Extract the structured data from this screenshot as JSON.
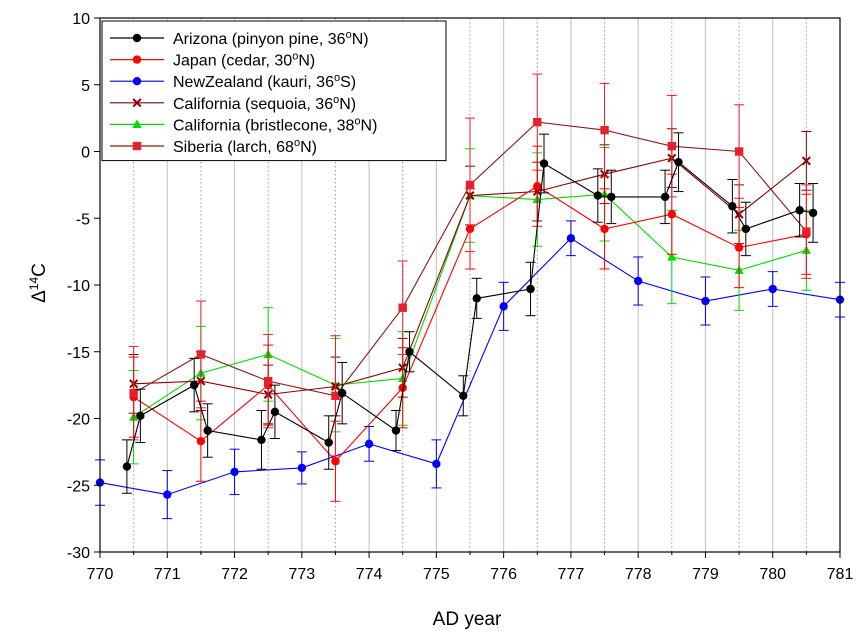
{
  "chart_data": {
    "type": "line",
    "xlabel": "AD year",
    "ylabel_main": "Δ",
    "ylabel_sup": "14",
    "ylabel_tail": "C",
    "xlim": [
      770,
      781
    ],
    "ylim": [
      -30,
      10
    ],
    "xticks": [
      770,
      771,
      772,
      773,
      774,
      775,
      776,
      777,
      778,
      779,
      780,
      781
    ],
    "yticks": [
      -30,
      -25,
      -20,
      -15,
      -10,
      -5,
      0,
      5,
      10
    ],
    "legend_position": "top-left",
    "grid": "vertical lines at each year (solid) and half-years (dotted)",
    "series": [
      {
        "name": "Arizona (pinyon pine, 36°N)",
        "name_parts": [
          "Arizona (pinyon pine, 36",
          "o",
          "N)"
        ],
        "color": "#000000",
        "marker": "circle",
        "x": [
          770.4,
          770.6,
          771.4,
          771.6,
          772.4,
          772.6,
          773.4,
          773.6,
          774.4,
          774.6,
          775.4,
          775.6,
          776.4,
          776.6,
          777.4,
          777.6,
          778.4,
          778.6,
          779.4,
          779.6,
          780.4,
          780.6
        ],
        "y": [
          -23.6,
          -19.8,
          -17.5,
          -20.9,
          -21.6,
          -19.5,
          -21.8,
          -18.1,
          -20.9,
          -15.0,
          -18.3,
          -11.0,
          -10.3,
          -0.9,
          -3.3,
          -3.4,
          -3.4,
          -0.8,
          -4.1,
          -5.8,
          -4.4,
          -4.6
        ],
        "err": [
          2.0,
          2.0,
          2.0,
          2.0,
          2.2,
          2.0,
          2.0,
          2.3,
          1.5,
          1.5,
          1.5,
          1.5,
          2.0,
          2.2,
          2.0,
          2.0,
          2.0,
          2.2,
          2.0,
          2.0,
          2.0,
          2.2
        ]
      },
      {
        "name": "Japan (cedar, 30°N)",
        "name_parts": [
          "Japan (cedar, 30",
          "o",
          "N)"
        ],
        "color": "#ff0000",
        "marker": "circle",
        "x": [
          770.5,
          771.5,
          772.5,
          773.5,
          774.5,
          775.5,
          776.5,
          777.5,
          778.5,
          779.5,
          780.5
        ],
        "y": [
          -18.4,
          -21.7,
          -17.5,
          -23.2,
          -17.7,
          -5.8,
          -2.6,
          -5.8,
          -4.7,
          -7.2,
          -6.2
        ],
        "err": [
          3.0,
          3.0,
          3.0,
          3.0,
          3.0,
          3.0,
          3.0,
          3.0,
          3.0,
          3.0,
          3.0
        ]
      },
      {
        "name": "NewZealand (kauri, 36°S)",
        "name_parts": [
          "NewZealand (kauri, 36",
          "o",
          "S)"
        ],
        "color": "#0000ff",
        "marker": "circle",
        "x": [
          770,
          771,
          772,
          773,
          774,
          775,
          776,
          777,
          778,
          779,
          780,
          781
        ],
        "y": [
          -24.8,
          -25.7,
          -24.0,
          -23.7,
          -21.9,
          -23.4,
          -11.6,
          -6.5,
          -9.7,
          -11.2,
          -10.3,
          -11.1
        ],
        "err": [
          1.7,
          1.8,
          1.7,
          1.2,
          1.3,
          1.8,
          1.8,
          1.3,
          1.8,
          1.8,
          1.3,
          1.3
        ]
      },
      {
        "name": "California (sequoia, 36°N)",
        "name_parts": [
          "California (sequoia, 36",
          "o",
          "N)"
        ],
        "color": "#8b0000",
        "marker": "x",
        "x": [
          770.5,
          771.5,
          772.5,
          773.5,
          774.5,
          775.5,
          776.5,
          777.5,
          778.5,
          779.5,
          780.5
        ],
        "y": [
          -17.4,
          -17.2,
          -18.2,
          -17.6,
          -16.2,
          -3.3,
          -3.0,
          -1.7,
          -0.5,
          -4.7,
          -0.7
        ],
        "err": [
          2.2,
          2.2,
          2.2,
          2.2,
          2.2,
          2.2,
          2.2,
          2.2,
          2.2,
          2.2,
          2.2
        ]
      },
      {
        "name": "California (bristlecone, 38°N)",
        "name_parts": [
          "California (bristlecone, 38",
          "o",
          "N)"
        ],
        "color": "#00dd00",
        "marker": "triangle",
        "x": [
          770.5,
          771.5,
          772.5,
          773.5,
          774.5,
          775.5,
          776.5,
          777.5,
          778.5,
          779.5,
          780.5
        ],
        "y": [
          -19.9,
          -16.6,
          -15.2,
          -17.5,
          -17.0,
          -3.3,
          -3.6,
          -3.2,
          -7.9,
          -8.9,
          -7.4
        ],
        "err": [
          3.5,
          3.5,
          3.5,
          3.5,
          3.5,
          3.5,
          3.5,
          3.5,
          3.5,
          3.0,
          3.0
        ]
      },
      {
        "name": "Siberia (larch, 68°N)",
        "name_parts": [
          "Siberia (larch, 68",
          "o",
          "N)"
        ],
        "color": "#e8202a",
        "line_color": "#8b1a1a",
        "marker": "square",
        "x": [
          770.5,
          771.5,
          772.5,
          773.5,
          774.5,
          775.5,
          776.5,
          777.5,
          778.5,
          779.5,
          780.5
        ],
        "y": [
          -18.1,
          -15.2,
          -17.2,
          -18.3,
          -11.7,
          -2.5,
          2.2,
          1.6,
          0.4,
          0.0,
          -6.0
        ],
        "err": [
          3.5,
          4.0,
          3.5,
          4.5,
          3.5,
          5.0,
          3.6,
          3.5,
          3.8,
          3.5,
          3.5
        ]
      }
    ]
  }
}
